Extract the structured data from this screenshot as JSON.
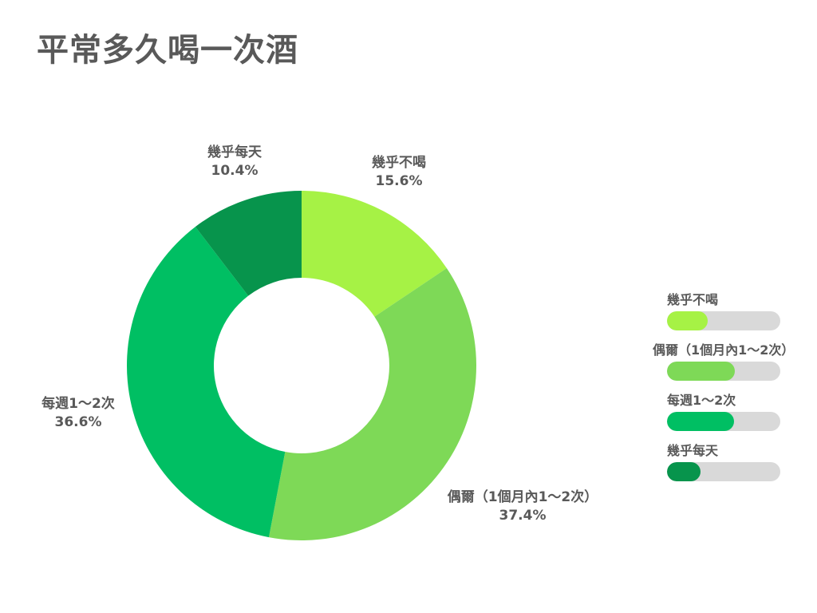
{
  "title": "平常多久喝一次酒",
  "chart_data": {
    "type": "pie",
    "donut": true,
    "legend_position": "right",
    "slices": [
      {
        "label": "幾乎不喝",
        "value": 15.6,
        "display": "15.6%",
        "color": "#a6f245"
      },
      {
        "label": "偶爾（1個月內1～2次）",
        "value": 37.4,
        "display": "37.4%",
        "color": "#7ed957"
      },
      {
        "label": "每週1～2次",
        "value": 36.6,
        "display": "36.6%",
        "color": "#00bf63"
      },
      {
        "label": "幾乎每天",
        "value": 10.4,
        "display": "10.4%",
        "color": "#07944c"
      }
    ]
  }
}
